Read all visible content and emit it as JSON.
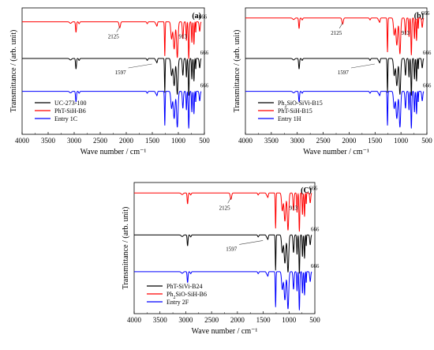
{
  "chart_data": [
    {
      "type": "line",
      "panel_label": "(a)",
      "xlabel": "Wave number / cm⁻¹",
      "ylabel": "Transmittance / (arb. unit)",
      "xlim": [
        4000,
        500
      ],
      "x_ticks": [
        4000,
        3500,
        3000,
        2500,
        2000,
        1500,
        1000,
        500
      ],
      "legend_position": "bottom-left",
      "series": [
        {
          "name": "UC-273-100",
          "color": "#000000",
          "baseline": 0.4
        },
        {
          "name": "PhT-SiH-B6",
          "color": "#ff0000",
          "baseline": 0.11
        },
        {
          "name": "Entry 1C",
          "color": "#0000ff",
          "baseline": 0.66
        }
      ],
      "annotations": [
        {
          "text": "2125",
          "x": 2125,
          "series": "PhT-SiH-B6"
        },
        {
          "text": "1597",
          "x": 1597,
          "series": "UC-273-100"
        },
        {
          "text": "913",
          "x": 913,
          "series": "PhT-SiH-B6"
        },
        {
          "text": "666",
          "x": 666,
          "series": "PhT-SiH-B6"
        },
        {
          "text": "666",
          "x": 666,
          "series": "UC-273-100"
        },
        {
          "text": "666",
          "x": 666,
          "series": "Entry 1C"
        }
      ]
    },
    {
      "type": "line",
      "panel_label": "(b)",
      "xlabel": "Wave number / cm⁻¹",
      "ylabel": "Transmittance / (arb. unit)",
      "xlim": [
        4000,
        500
      ],
      "x_ticks": [
        4000,
        3500,
        3000,
        2500,
        2000,
        1500,
        1000,
        500
      ],
      "legend_position": "bottom-left",
      "series": [
        {
          "name": "Ph₂SiO-SiVi-B15",
          "color": "#000000",
          "baseline": 0.4
        },
        {
          "name": "PhT-SiH-B15",
          "color": "#ff0000",
          "baseline": 0.08
        },
        {
          "name": "Entry 1H",
          "color": "#0000ff",
          "baseline": 0.66
        }
      ],
      "annotations": [
        {
          "text": "2125",
          "x": 2125,
          "series": "PhT-SiH-B15"
        },
        {
          "text": "1597",
          "x": 1597,
          "series": "Ph₂SiO-SiVi-B15"
        },
        {
          "text": "913",
          "x": 913,
          "series": "PhT-SiH-B15"
        },
        {
          "text": "666",
          "x": 666,
          "series": "PhT-SiH-B15"
        },
        {
          "text": "666",
          "x": 666,
          "series": "Ph₂SiO-SiVi-B15"
        },
        {
          "text": "666",
          "x": 666,
          "series": "Entry 1H"
        }
      ]
    },
    {
      "type": "line",
      "panel_label": "(C)",
      "xlabel": "Wave number / cm⁻¹",
      "ylabel": "Transmittance / (arb. unit)",
      "xlim": [
        4000,
        500
      ],
      "x_ticks": [
        4000,
        3500,
        3000,
        2500,
        2000,
        1500,
        1000,
        500
      ],
      "legend_position": "bottom-left",
      "series": [
        {
          "name": "PhT-SiVi-B24",
          "color": "#000000",
          "baseline": 0.4
        },
        {
          "name": "Ph₂SiO-SiH-B6",
          "color": "#ff0000",
          "baseline": 0.08
        },
        {
          "name": "Entry 2F",
          "color": "#0000ff",
          "baseline": 0.68
        }
      ],
      "annotations": [
        {
          "text": "2125",
          "x": 2125,
          "series": "Ph₂SiO-SiH-B6"
        },
        {
          "text": "1597",
          "x": 1597,
          "series": "PhT-SiVi-B24"
        },
        {
          "text": "913",
          "x": 913,
          "series": "Ph₂SiO-SiH-B6"
        },
        {
          "text": "666",
          "x": 666,
          "series": "Ph₂SiO-SiH-B6"
        },
        {
          "text": "666",
          "x": 666,
          "series": "PhT-SiVi-B24"
        },
        {
          "text": "666",
          "x": 666,
          "series": "Entry 2F"
        }
      ]
    }
  ]
}
